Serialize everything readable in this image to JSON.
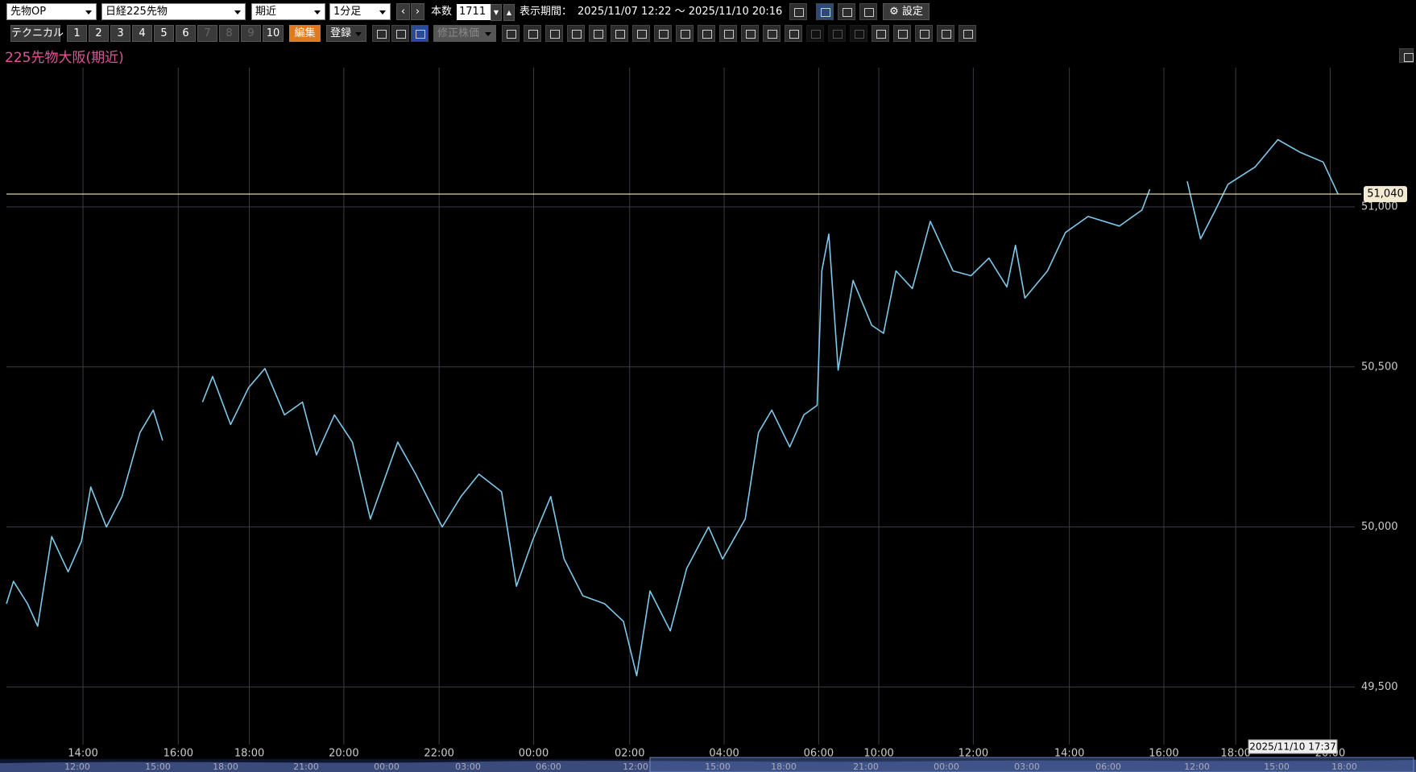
{
  "toolbar": {
    "row1": {
      "market": "先物OP",
      "symbol": "日経225先物",
      "contract": "期近",
      "interval": "1分足",
      "bars_label": "本数",
      "bars_value": "1711",
      "period_label": "表示期間：",
      "period_value": "2025/11/07 12:22 ～ 2025/11/10 20:16",
      "settings": "設定"
    },
    "row2": {
      "technical": "テクニカル",
      "numbers": [
        "1",
        "2",
        "3",
        "4",
        "5",
        "6",
        "7",
        "8",
        "9",
        "10"
      ],
      "edit": "編集",
      "register": "登録",
      "adjusted": "修正株価"
    }
  },
  "chart_data": {
    "type": "line",
    "title": "225先物大阪(期近)",
    "series": [
      {
        "color": "#7ec8ea",
        "x": [
          0,
          9,
          27,
          40,
          58,
          79,
          96,
          108,
          128,
          148,
          171,
          188,
          200,
          225,
          251,
          264,
          287,
          310,
          331,
          356,
          379,
          397,
          420,
          443,
          466,
          501,
          524,
          558,
          582,
          605,
          634,
          653,
          674,
          697,
          714,
          738,
          766,
          790,
          807,
          824,
          850,
          871,
          899,
          917,
          946,
          963,
          980,
          1003,
          1021,
          1038,
          1044,
          1053,
          1065,
          1084,
          1108,
          1123,
          1139,
          1160,
          1183,
          1212,
          1235,
          1258,
          1281,
          1292,
          1304,
          1333,
          1356,
          1385,
          1425,
          1454,
          1464,
          1488,
          1512,
          1529,
          1547,
          1564,
          1599,
          1628,
          1657,
          1686,
          1705
        ],
        "values": [
          49760,
          49830,
          49760,
          49690,
          49970,
          49860,
          49955,
          50125,
          50000,
          50095,
          50295,
          50365,
          50270,
          null,
          50390,
          50470,
          50320,
          50435,
          50495,
          50350,
          50390,
          50225,
          50350,
          50265,
          50025,
          50265,
          50165,
          50000,
          50095,
          50165,
          50110,
          49815,
          49960,
          50095,
          49900,
          49785,
          49760,
          49705,
          49535,
          49800,
          49675,
          49870,
          50000,
          49900,
          50025,
          50295,
          50365,
          50250,
          50350,
          50380,
          50800,
          50915,
          50490,
          50770,
          50630,
          50605,
          50800,
          50745,
          50955,
          50800,
          50785,
          50840,
          50750,
          50880,
          50715,
          50800,
          50920,
          50970,
          50940,
          50990,
          51055,
          null,
          51080,
          50900,
          50985,
          51070,
          51125,
          51210,
          51170,
          51140,
          51040
        ]
      }
    ],
    "xlim": [
      0,
      1711
    ],
    "xticks": [
      {
        "value": 98,
        "label": "14:00"
      },
      {
        "value": 220,
        "label": "16:00"
      },
      {
        "value": 311,
        "label": "18:00"
      },
      {
        "value": 432,
        "label": "20:00"
      },
      {
        "value": 554,
        "label": "22:00"
      },
      {
        "value": 675,
        "label": "00:00"
      },
      {
        "value": 798,
        "label": "02:00"
      },
      {
        "value": 919,
        "label": "04:00"
      },
      {
        "value": 1040,
        "label": "06:00"
      },
      {
        "value": 1117,
        "label": "10:00"
      },
      {
        "value": 1238,
        "label": "12:00"
      },
      {
        "value": 1361,
        "label": "14:00"
      },
      {
        "value": 1482,
        "label": "16:00"
      },
      {
        "value": 1574,
        "label": "18:00"
      },
      {
        "value": 1695,
        "label": "20:00"
      }
    ],
    "ylim": [
      49320,
      51435
    ],
    "yticks": [
      {
        "value": 49500,
        "label": "49,500"
      },
      {
        "value": 50000,
        "label": "50,000"
      },
      {
        "value": 50500,
        "label": "50,500"
      },
      {
        "value": 51000,
        "label": "51,000"
      }
    ],
    "price_line": {
      "value": 51040,
      "label": "51,040"
    },
    "grid": true,
    "cursor_time": "2025/11/10 17:37"
  },
  "navigator": {
    "labels": [
      "12:00",
      "15:00",
      "18:00",
      "21:00",
      "00:00",
      "03:00",
      "06:00",
      "12:00",
      "15:00",
      "18:00",
      "21:00",
      "00:00",
      "03:00",
      "06:00",
      "12:00",
      "15:00",
      "18:00"
    ]
  }
}
